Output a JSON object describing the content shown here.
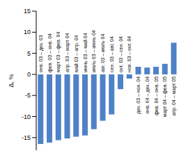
{
  "chart_data": {
    "type": "bar",
    "y_label": "Δ, %",
    "categories": [
      "янв. 03 – дек. 03",
      "фев. 03 – янв. 04",
      "март 03 – фев. 04",
      "апр. 03 – март 04",
      "май 03 – апр. 04",
      "июнь 03 – май 04",
      "июль 03 – июнь 04",
      "авг. 03 – июль 04",
      "сен. 03 – авг. 04",
      "окт. 03 – сен. 04",
      "ноя. 03 – окт. 04",
      "дек. 03 – ноя. 04",
      "янв. 04 – дек. 04",
      "фев. 04 – янв. 05",
      "март 04 – фев. 05",
      "апр. 04 – март 05"
    ],
    "values": [
      -16.5,
      -16.2,
      -15.6,
      -15.2,
      -14.8,
      -14.5,
      -13,
      -11,
      -9.5,
      -3.5,
      -1,
      1.8,
      1.6,
      1.8,
      2.5,
      7.5
    ],
    "color": "#4f81c7",
    "ylim": [
      -18,
      15
    ],
    "yticks": [
      -15,
      -10,
      -5,
      0,
      5,
      10,
      15
    ],
    "grid": false
  }
}
